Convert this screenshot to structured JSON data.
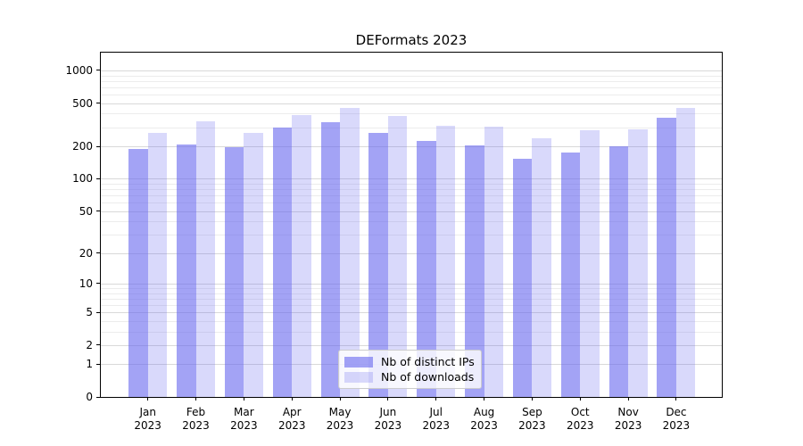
{
  "chart_data": {
    "type": "bar",
    "title": "DEFormats 2023",
    "categories": [
      "Jan",
      "Feb",
      "Mar",
      "Apr",
      "May",
      "Jun",
      "Jul",
      "Aug",
      "Sep",
      "Oct",
      "Nov",
      "Dec"
    ],
    "category_year": "2023",
    "series": [
      {
        "name": "Nb of distinct IPs",
        "color": "rgba(102,102,238,0.6)",
        "values": [
          190,
          206,
          197,
          298,
          336,
          267,
          224,
          204,
          152,
          174,
          200,
          367
        ]
      },
      {
        "name": "Nb of downloads",
        "color": "rgba(102,102,238,0.25)",
        "values": [
          265,
          340,
          267,
          390,
          450,
          381,
          307,
          304,
          237,
          281,
          288,
          448
        ]
      }
    ],
    "y_axis": {
      "scale": "log10(value+1)",
      "major_ticks": [
        1000,
        500,
        200,
        100,
        50,
        20,
        10,
        5,
        2,
        1,
        0
      ],
      "minor_gridlines": [
        900,
        800,
        700,
        600,
        400,
        300,
        90,
        80,
        70,
        60,
        40,
        30,
        9,
        8,
        7,
        6,
        4,
        3
      ],
      "ylim": [
        0,
        1458
      ]
    },
    "xlabel": "",
    "ylabel": "",
    "legend": {
      "position": "lower center",
      "entries": [
        "Nb of distinct IPs",
        "Nb of downloads"
      ]
    },
    "grid": true,
    "colors": {
      "bar_base": "#6666ee",
      "grid_major": "#d9d9d9",
      "grid_minor": "#ececec",
      "axis": "#000000",
      "text": "#000000",
      "legend_border": "#cccccc",
      "background": "#ffffff"
    }
  }
}
